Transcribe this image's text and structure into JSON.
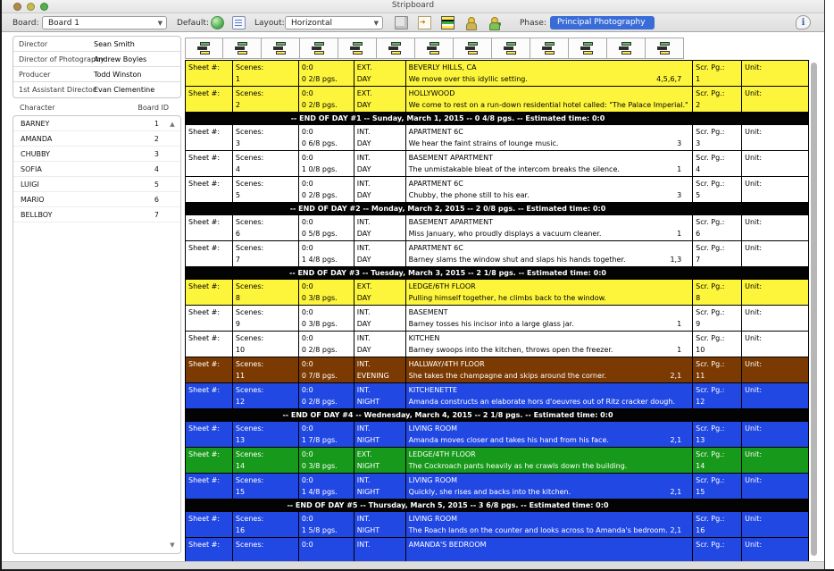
{
  "window": {
    "title": "Stripboard"
  },
  "toolbar": {
    "board_label": "Board:",
    "board_value": "Board 1",
    "default_label": "Default:",
    "layout_label": "Layout:",
    "layout_value": "Horizontal",
    "phase_label": "Phase:",
    "phase_value": "Principal Photography",
    "icons": [
      "default-color-icon",
      "default-layout-icon",
      "cube-icon",
      "paste-strip-icon",
      "stripboard-icon",
      "character-icon",
      "character-edit-icon",
      "info-icon"
    ]
  },
  "sidebar": {
    "crew": [
      {
        "label": "Director",
        "value": "Sean Smith"
      },
      {
        "label": "Director of Photography",
        "value": "Andrew Boyles"
      },
      {
        "label": "Producer",
        "value": "Todd Winston"
      },
      {
        "label": "1st Assistant Director",
        "value": "Evan Clementine"
      }
    ],
    "character_header": "Character",
    "board_id_header": "Board ID",
    "characters": [
      {
        "name": "BARNEY",
        "id": "1"
      },
      {
        "name": "AMANDA",
        "id": "2"
      },
      {
        "name": "CHUBBY",
        "id": "3"
      },
      {
        "name": "SOFIA",
        "id": "4"
      },
      {
        "name": "LUIGI",
        "id": "5"
      },
      {
        "name": "MARIO",
        "id": "6"
      },
      {
        "name": "BELLBOY",
        "id": "7"
      }
    ],
    "scroll_icons": [
      "scroll-up-icon",
      "scroll-down-icon"
    ]
  },
  "stripboard": {
    "tools": [
      "move-strip-left-icon",
      "move-strip-right-icon",
      "reorder-strips-icon",
      "link-strips-icon",
      "split-strip-icon",
      "sort-strips-icon",
      "merge-strip-left-icon",
      "merge-strip-right-icon",
      "add-strip-icon",
      "recolor-strip-icon",
      "duplicate-strip-icon",
      "check-strip-icon",
      "delete-strip-icon"
    ],
    "labels": {
      "sheet": "Sheet #:",
      "scenes": "Scenes:",
      "time": "0:0",
      "scr": "Scr. Pg.:",
      "unit": "Unit:"
    },
    "colors": {
      "yellow": "#fdf53c",
      "white": "#ffffff",
      "blue": "#2248e4",
      "green": "#17991b",
      "brown": "#7b3a02",
      "banner": "#030303"
    },
    "rows": [
      {
        "type": "strip",
        "color": "yellow",
        "scene": "1",
        "pgs": "0 2/8 pgs.",
        "ie": "EXT.",
        "dn": "DAY",
        "loc": "BEVERLY HILLS, CA",
        "desc": "We move over this idyllic setting.",
        "cast": "4,5,6,7",
        "scr": "1"
      },
      {
        "type": "strip",
        "color": "yellow",
        "scene": "2",
        "pgs": "0 2/8 pgs.",
        "ie": "EXT.",
        "dn": "DAY",
        "loc": "HOLLYWOOD",
        "desc": "We come to rest on a run-down residential hotel called: \"The Palace Imperial.\"",
        "cast": "",
        "scr": "2"
      },
      {
        "type": "banner",
        "text": "-- END OF DAY #1 -- Sunday, March 1, 2015 -- 0 4/8 pgs. -- Estimated time: 0:0"
      },
      {
        "type": "strip",
        "color": "white",
        "scene": "3",
        "pgs": "0 6/8 pgs.",
        "ie": "INT.",
        "dn": "DAY",
        "loc": "APARTMENT 6C",
        "desc": "We hear the faint strains of lounge music.",
        "cast": "3",
        "scr": "3"
      },
      {
        "type": "strip",
        "color": "white",
        "scene": "4",
        "pgs": "1 0/8 pgs.",
        "ie": "INT.",
        "dn": "DAY",
        "loc": "BASEMENT APARTMENT",
        "desc": "The unmistakable bleat of the intercom breaks the silence.",
        "cast": "1",
        "scr": "4"
      },
      {
        "type": "strip",
        "color": "white",
        "scene": "5",
        "pgs": "0 2/8 pgs.",
        "ie": "INT.",
        "dn": "DAY",
        "loc": "APARTMENT 6C",
        "desc": "Chubby, the phone still to his ear.",
        "cast": "3",
        "scr": "5"
      },
      {
        "type": "banner",
        "text": "-- END OF DAY #2 -- Monday, March 2, 2015 -- 2 0/8 pgs. -- Estimated time: 0:0"
      },
      {
        "type": "strip",
        "color": "white",
        "scene": "6",
        "pgs": "0 5/8 pgs.",
        "ie": "INT.",
        "dn": "DAY",
        "loc": "BASEMENT APARTMENT",
        "desc": "Miss January, who proudly displays a vacuum cleaner.",
        "cast": "1",
        "scr": "6"
      },
      {
        "type": "strip",
        "color": "white",
        "scene": "7",
        "pgs": "1 4/8 pgs.",
        "ie": "INT.",
        "dn": "DAY",
        "loc": "APARTMENT 6C",
        "desc": "Barney slams the window shut and slaps his hands together.",
        "cast": "1,3",
        "scr": "7"
      },
      {
        "type": "banner",
        "text": "-- END OF DAY #3 -- Tuesday, March 3, 2015 -- 2 1/8 pgs. -- Estimated time: 0:0"
      },
      {
        "type": "strip",
        "color": "yellow",
        "scene": "8",
        "pgs": "0 3/8 pgs.",
        "ie": "EXT.",
        "dn": "DAY",
        "loc": "LEDGE/6TH FLOOR",
        "desc": "Pulling himself together, he climbs back to the window.",
        "cast": "",
        "scr": "8"
      },
      {
        "type": "strip",
        "color": "white",
        "scene": "9",
        "pgs": "0 3/8 pgs.",
        "ie": "INT.",
        "dn": "DAY",
        "loc": "BASEMENT",
        "desc": "Barney tosses his incisor into a large glass jar.",
        "cast": "1",
        "scr": "9"
      },
      {
        "type": "strip",
        "color": "white",
        "scene": "10",
        "pgs": "0 2/8 pgs.",
        "ie": "INT.",
        "dn": "DAY",
        "loc": "KITCHEN",
        "desc": "Barney swoops into the kitchen, throws open the freezer.",
        "cast": "1",
        "scr": "10"
      },
      {
        "type": "strip",
        "color": "brown",
        "scene": "11",
        "pgs": "0 7/8 pgs.",
        "ie": "INT.",
        "dn": "EVENING",
        "loc": "HALLWAY/4TH FLOOR",
        "desc": "She takes the champagne and skips around the corner.",
        "cast": "2,1",
        "scr": "11"
      },
      {
        "type": "strip",
        "color": "blue",
        "scene": "12",
        "pgs": "0 2/8 pgs.",
        "ie": "INT.",
        "dn": "NIGHT",
        "loc": "KITCHENETTE",
        "desc": "Amanda constructs an elaborate hors d'oeuvres out of Ritz cracker dough.",
        "cast": "",
        "scr": "12"
      },
      {
        "type": "banner",
        "text": "-- END OF DAY #4 -- Wednesday, March 4, 2015 -- 2 1/8 pgs. -- Estimated time: 0:0"
      },
      {
        "type": "strip",
        "color": "blue",
        "scene": "13",
        "pgs": "1 7/8 pgs.",
        "ie": "INT.",
        "dn": "NIGHT",
        "loc": "LIVING ROOM",
        "desc": "Amanda moves closer and takes his hand from his face.",
        "cast": "2,1",
        "scr": "13"
      },
      {
        "type": "strip",
        "color": "green",
        "scene": "14",
        "pgs": "0 3/8 pgs.",
        "ie": "EXT.",
        "dn": "NIGHT",
        "loc": "LEDGE/4TH FLOOR",
        "desc": "The Cockroach pants heavily as he crawls down the building.",
        "cast": "",
        "scr": "14"
      },
      {
        "type": "strip",
        "color": "blue",
        "scene": "15",
        "pgs": "1 4/8 pgs.",
        "ie": "INT.",
        "dn": "NIGHT",
        "loc": "LIVING ROOM",
        "desc": "Quickly, she rises and backs into the kitchen.",
        "cast": "2,1",
        "scr": "15"
      },
      {
        "type": "banner",
        "text": "-- END OF DAY #5 -- Thursday, March 5, 2015 -- 3 6/8 pgs. -- Estimated time: 0:0"
      },
      {
        "type": "strip",
        "color": "blue",
        "scene": "16",
        "pgs": "1 5/8 pgs.",
        "ie": "INT.",
        "dn": "NIGHT",
        "loc": "LIVING ROOM",
        "desc": "The Roach lands on the counter and looks across to Amanda's bedroom.",
        "cast": "2,1",
        "scr": "16"
      },
      {
        "type": "strip",
        "color": "blue",
        "scene": "",
        "pgs": "",
        "ie": "INT.",
        "dn": "",
        "loc": "AMANDA'S BEDROOM",
        "desc": "",
        "cast": "",
        "scr": ""
      }
    ]
  }
}
